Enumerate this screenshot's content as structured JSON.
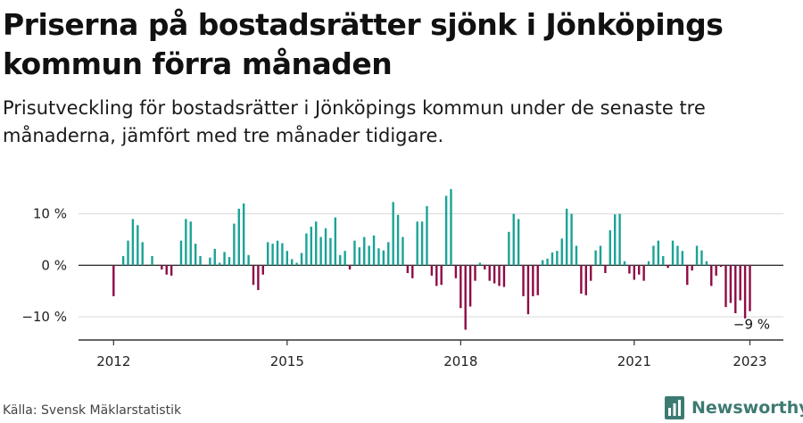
{
  "title": "Priserna på bostadsrätter sjönk i Jönköpings kommun förra månaden",
  "subtitle": "Prisutveckling för bostadsrätter i Jönköpings kommun under de senaste tre månaderna, jämfört med tre månader tidigare.",
  "source": "Källa: Svensk Mäklarstatistik",
  "brand": {
    "name": "Newsworthy"
  },
  "colors": {
    "positive": "#1aa396",
    "negative": "#8f0b45",
    "grid": "#d9d9d9",
    "axis": "#333333"
  },
  "chart_data": {
    "type": "bar",
    "title": "",
    "xlabel": "",
    "ylabel": "",
    "start": "2012-01",
    "ylim": [
      -14.5,
      16
    ],
    "yticks": [
      {
        "value": 10,
        "label": "10 %"
      },
      {
        "value": 0,
        "label": "0 %"
      },
      {
        "value": -10,
        "label": "−10 %"
      }
    ],
    "xticks": [
      {
        "year": 2012,
        "label": "2012"
      },
      {
        "year": 2015,
        "label": "2015"
      },
      {
        "year": 2018,
        "label": "2018"
      },
      {
        "year": 2021,
        "label": "2021"
      },
      {
        "year": 2023,
        "label": "2023"
      }
    ],
    "annotation": {
      "label": "−9 %"
    },
    "values": [
      -6.0,
      0,
      1.8,
      4.8,
      9.0,
      7.8,
      4.5,
      0,
      1.8,
      0,
      -0.8,
      -1.8,
      -2.0,
      0,
      4.8,
      9.0,
      8.5,
      4.2,
      1.8,
      0,
      1.5,
      3.2,
      0.5,
      2.6,
      1.6,
      8.1,
      11.0,
      12.0,
      2.0,
      -3.8,
      -4.8,
      -1.8,
      4.5,
      4.2,
      4.8,
      4.3,
      2.8,
      1.2,
      0.5,
      2.4,
      6.2,
      7.5,
      8.5,
      5.5,
      7.2,
      5.3,
      9.3,
      2.0,
      2.8,
      -0.8,
      4.8,
      3.5,
      5.5,
      3.8,
      5.8,
      3.3,
      2.9,
      4.5,
      12.3,
      9.8,
      5.5,
      -1.5,
      -2.5,
      8.5,
      8.5,
      11.5,
      -2.0,
      -4.0,
      -3.8,
      13.5,
      14.8,
      -2.5,
      -8.3,
      -12.5,
      -8.0,
      -3.0,
      0.5,
      -0.8,
      -3.0,
      -3.5,
      -4.0,
      -4.2,
      6.5,
      10.0,
      9.0,
      -6.0,
      -9.5,
      -6.0,
      -5.8,
      1.0,
      1.3,
      2.5,
      2.8,
      5.2,
      11.0,
      10.0,
      3.8,
      -5.5,
      -5.8,
      -3.0,
      2.9,
      3.8,
      -1.5,
      6.8,
      9.9,
      10.0,
      0.8,
      -1.6,
      -2.8,
      -1.8,
      -3.0,
      0.8,
      3.8,
      4.8,
      1.8,
      -0.5,
      4.8,
      3.8,
      2.8,
      -3.8,
      -1.0,
      3.8,
      2.9,
      0.8,
      -4.0,
      -2.0,
      -0.3,
      -8.1,
      -7.3,
      -9.3,
      -6.8,
      -10.3,
      -8.9
    ]
  }
}
